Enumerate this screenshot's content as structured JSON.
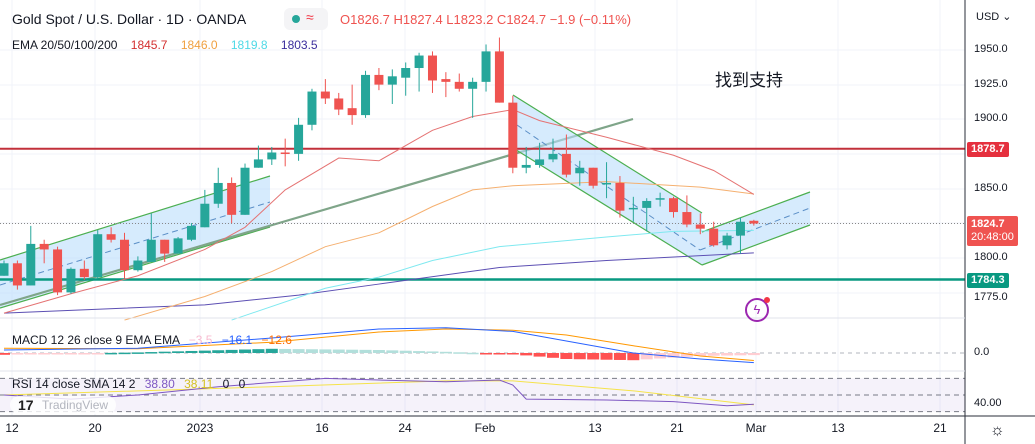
{
  "header": {
    "title": "Gold Spot / U.S. Dollar · 1D · OANDA",
    "status_icon": "market-open-dot-icon",
    "delay_icon": "≈",
    "ohlc": {
      "o_label": "O",
      "o": "1826.7",
      "h_label": "H",
      "h": "1827.4",
      "l_label": "L",
      "l": "1823.2",
      "c_label": "C",
      "c": "1824.7",
      "change": "−1.9 (−0.11%)"
    }
  },
  "ema_legend": {
    "label": "EMA 20/50/100/200",
    "v20": "1845.7",
    "v50": "1846.0",
    "v100": "1819.8",
    "v200": "1803.5"
  },
  "macd_legend": {
    "label": "MACD 12 26 close 9 EMA EMA",
    "hist": "−3.5",
    "macd": "−16.1",
    "signal": "−12.6"
  },
  "rsi_legend": {
    "label": "RSI 14 close SMA 14 2",
    "rsi": "38.80",
    "sma": "38.11",
    "v3": "0",
    "v4": "0"
  },
  "annotation": "找到支持",
  "watermark": {
    "logo": "17",
    "text": "TradingView"
  },
  "price_axis": {
    "currency": "USD ⌄",
    "ticks": [
      "1950.0",
      "1925.0",
      "1900.0",
      "1850.0",
      "1800.0",
      "1775.0"
    ],
    "resistance": "1878.7",
    "last_price": "1824.7",
    "countdown": "20:48:00",
    "support": "1784.3",
    "macd_tick": "0.0",
    "rsi_tick": "40.00"
  },
  "time_axis": [
    "12",
    "20",
    "2023",
    "16",
    "24",
    "Feb",
    "13",
    "21",
    "Mar",
    "13",
    "21"
  ],
  "colors": {
    "up": "#26a69a",
    "down": "#ef5350",
    "ema20": "#e57373",
    "ema50": "#f5b070",
    "ema100": "#7fe9f0",
    "ema200": "#5c4fb3",
    "resistance": "#c2303a",
    "support": "#089981"
  },
  "chart_data": {
    "type": "candlestick",
    "symbol": "XAUUSD",
    "ylim": [
      1760,
      1965
    ],
    "candles_ohlc": [
      [
        1787,
        1798,
        1787,
        1796
      ],
      [
        1796,
        1798,
        1777,
        1780
      ],
      [
        1780,
        1823,
        1780,
        1810
      ],
      [
        1810,
        1813,
        1796,
        1806
      ],
      [
        1806,
        1808,
        1773,
        1775
      ],
      [
        1775,
        1793,
        1774,
        1792
      ],
      [
        1792,
        1798,
        1784,
        1786
      ],
      [
        1786,
        1820,
        1785,
        1817
      ],
      [
        1817,
        1822,
        1811,
        1813
      ],
      [
        1813,
        1818,
        1785,
        1791
      ],
      [
        1791,
        1801,
        1790,
        1798
      ],
      [
        1797,
        1832,
        1797,
        1813
      ],
      [
        1813,
        1813,
        1797,
        1803
      ],
      [
        1803,
        1815,
        1803,
        1814
      ],
      [
        1813,
        1825,
        1812,
        1823
      ],
      [
        1822,
        1849,
        1822,
        1839
      ],
      [
        1839,
        1865,
        1836,
        1854
      ],
      [
        1854,
        1858,
        1825,
        1831
      ],
      [
        1831,
        1868,
        1831,
        1865
      ],
      [
        1865,
        1881,
        1865,
        1871
      ],
      [
        1871,
        1880,
        1867,
        1876
      ],
      [
        1876,
        1886,
        1866,
        1875
      ],
      [
        1875,
        1901,
        1870,
        1896
      ],
      [
        1896,
        1922,
        1892,
        1920
      ],
      [
        1920,
        1929,
        1911,
        1915
      ],
      [
        1915,
        1919,
        1903,
        1907
      ],
      [
        1908,
        1925,
        1896,
        1903
      ],
      [
        1903,
        1935,
        1901,
        1932
      ],
      [
        1932,
        1937,
        1921,
        1925
      ],
      [
        1925,
        1936,
        1911,
        1931
      ],
      [
        1930,
        1941,
        1917,
        1937
      ],
      [
        1937,
        1948,
        1920,
        1946
      ],
      [
        1946,
        1949,
        1919,
        1928
      ],
      [
        1929,
        1934,
        1916,
        1927
      ],
      [
        1927,
        1933,
        1920,
        1922
      ],
      [
        1922,
        1930,
        1901,
        1927
      ],
      [
        1927,
        1954,
        1920,
        1949
      ],
      [
        1949,
        1959,
        1912,
        1912
      ],
      [
        1912,
        1917,
        1861,
        1865
      ],
      [
        1865,
        1880,
        1861,
        1867
      ],
      [
        1867,
        1883,
        1865,
        1871
      ],
      [
        1871,
        1886,
        1869,
        1875
      ],
      [
        1875,
        1889,
        1858,
        1860
      ],
      [
        1861,
        1870,
        1852,
        1865
      ],
      [
        1865,
        1865,
        1850,
        1852
      ],
      [
        1853,
        1869,
        1843,
        1854
      ],
      [
        1854,
        1859,
        1829,
        1834
      ],
      [
        1835,
        1844,
        1826,
        1836
      ],
      [
        1836,
        1843,
        1819,
        1841
      ],
      [
        1842,
        1847,
        1837,
        1843
      ],
      [
        1843,
        1844,
        1829,
        1833
      ],
      [
        1833,
        1845,
        1822,
        1824
      ],
      [
        1824,
        1832,
        1817,
        1821
      ],
      [
        1821,
        1826,
        1808,
        1809
      ],
      [
        1809,
        1818,
        1806,
        1816
      ],
      [
        1816,
        1829,
        1803,
        1826
      ],
      [
        1826.7,
        1827.4,
        1823.2,
        1824.7
      ]
    ],
    "ema20": [
      [
        0,
        1760
      ],
      [
        5,
        1774
      ],
      [
        10,
        1787
      ],
      [
        15,
        1806
      ],
      [
        18,
        1822
      ],
      [
        21,
        1849
      ],
      [
        25,
        1872
      ],
      [
        28,
        1870
      ],
      [
        32,
        1892
      ],
      [
        35,
        1902
      ],
      [
        38,
        1907
      ],
      [
        40,
        1899
      ],
      [
        45,
        1887
      ],
      [
        50,
        1874
      ],
      [
        53,
        1863
      ],
      [
        56,
        1845.7
      ]
    ],
    "ema50": [
      [
        9,
        1755
      ],
      [
        15,
        1772
      ],
      [
        20,
        1790
      ],
      [
        24,
        1808
      ],
      [
        28,
        1818
      ],
      [
        32,
        1837
      ],
      [
        35,
        1849
      ],
      [
        38,
        1852
      ],
      [
        45,
        1855
      ],
      [
        52,
        1851
      ],
      [
        56,
        1846.0
      ]
    ],
    "ema100": [
      [
        17,
        1755
      ],
      [
        24,
        1778
      ],
      [
        28,
        1786
      ],
      [
        32,
        1798
      ],
      [
        37,
        1808
      ],
      [
        45,
        1815
      ],
      [
        50,
        1819
      ],
      [
        56,
        1819.8
      ]
    ],
    "ema200": [
      [
        0,
        1760
      ],
      [
        15,
        1766
      ],
      [
        22,
        1773
      ],
      [
        28,
        1781
      ],
      [
        37,
        1793
      ],
      [
        45,
        1798
      ],
      [
        56,
        1803.5
      ]
    ],
    "horizontal_levels": [
      1878.7,
      1784.3
    ],
    "macd": [
      [
        0,
        5
      ],
      [
        10,
        8
      ],
      [
        20,
        25
      ],
      [
        28,
        40
      ],
      [
        33,
        42
      ],
      [
        38,
        36
      ],
      [
        42,
        20
      ],
      [
        47,
        0
      ],
      [
        52,
        -10
      ],
      [
        56,
        -16.1
      ]
    ],
    "macd_signal": [
      [
        0,
        8
      ],
      [
        10,
        7
      ],
      [
        20,
        18
      ],
      [
        28,
        35
      ],
      [
        33,
        40
      ],
      [
        38,
        38
      ],
      [
        42,
        30
      ],
      [
        47,
        12
      ],
      [
        52,
        -5
      ],
      [
        56,
        -12.6
      ]
    ],
    "rsi": [
      [
        0,
        50
      ],
      [
        5,
        45
      ],
      [
        10,
        50
      ],
      [
        16,
        60
      ],
      [
        20,
        65
      ],
      [
        24,
        70
      ],
      [
        28,
        68
      ],
      [
        33,
        66
      ],
      [
        37,
        68
      ],
      [
        38,
        62
      ],
      [
        39,
        45
      ],
      [
        45,
        44
      ],
      [
        50,
        42
      ],
      [
        54,
        37
      ],
      [
        56,
        38.8
      ]
    ],
    "rsi_sma": [
      [
        0,
        50
      ],
      [
        20,
        60
      ],
      [
        33,
        67
      ],
      [
        38,
        67
      ],
      [
        47,
        55
      ],
      [
        56,
        38.11
      ]
    ],
    "rsi_bands": [
      70,
      50,
      30
    ]
  }
}
